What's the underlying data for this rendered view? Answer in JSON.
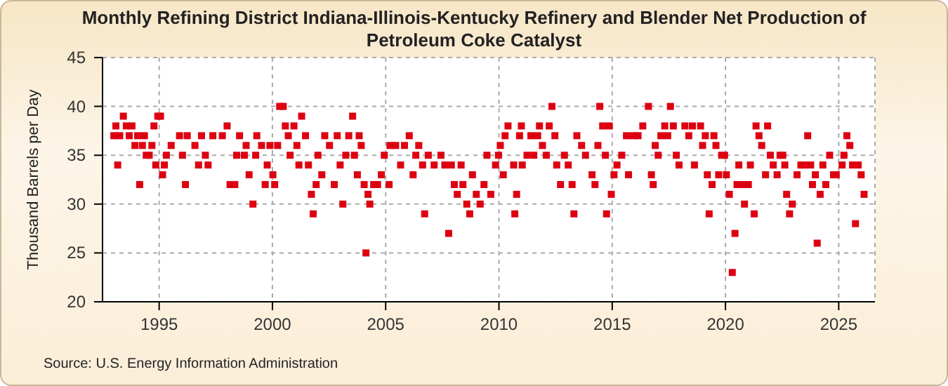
{
  "chart_data": {
    "type": "scatter",
    "title": "Monthly Refining District Indiana-Illinois-Kentucky Refinery and Blender Net Production of Petroleum Coke Catalyst",
    "ylabel": "Thousand Barrels per Day",
    "annotations": [
      "Source: U.S. Energy Information Administration"
    ],
    "marker": "square",
    "grid": true,
    "xlim": [
      1992.5,
      2026.6
    ],
    "xticks": [
      1995,
      2000,
      2005,
      2010,
      2015,
      2020,
      2025
    ],
    "ylim": [
      20,
      45
    ],
    "yticks": [
      20,
      25,
      30,
      35,
      40,
      45
    ],
    "x": [
      1993.0,
      1993.09,
      1993.17,
      1993.26,
      1993.42,
      1993.55,
      1993.68,
      1993.8,
      1993.93,
      1994.05,
      1994.14,
      1994.26,
      1994.35,
      1994.43,
      1994.56,
      1994.68,
      1994.77,
      1994.85,
      1994.94,
      1995.06,
      1995.15,
      1995.23,
      1995.32,
      1995.53,
      1995.9,
      1996.03,
      1996.16,
      1996.24,
      1996.58,
      1996.74,
      1996.87,
      1997.04,
      1997.16,
      1997.37,
      1997.79,
      1998.0,
      1998.13,
      1998.34,
      1998.42,
      1998.55,
      1998.76,
      1998.84,
      1998.97,
      1999.14,
      1999.26,
      1999.31,
      1999.52,
      1999.68,
      1999.77,
      1999.89,
      2000.02,
      2000.1,
      2000.23,
      2000.32,
      2000.48,
      2000.57,
      2000.7,
      2000.78,
      2000.95,
      2001.08,
      2001.17,
      2001.29,
      2001.46,
      2001.59,
      2001.72,
      2001.8,
      2001.93,
      2002.01,
      2002.18,
      2002.31,
      2002.52,
      2002.73,
      2002.86,
      2002.99,
      2003.11,
      2003.24,
      2003.37,
      2003.54,
      2003.62,
      2003.75,
      2003.83,
      2003.92,
      2004.05,
      2004.13,
      2004.22,
      2004.3,
      2004.47,
      2004.64,
      2004.81,
      2004.94,
      2005.15,
      2005.19,
      2005.44,
      2005.66,
      2005.83,
      2006.04,
      2006.21,
      2006.33,
      2006.46,
      2006.63,
      2006.72,
      2006.88,
      2007.14,
      2007.44,
      2007.61,
      2007.78,
      2007.9,
      2008.03,
      2008.16,
      2008.33,
      2008.41,
      2008.58,
      2008.71,
      2008.83,
      2009.0,
      2009.17,
      2009.34,
      2009.47,
      2009.64,
      2009.85,
      2009.98,
      2010.06,
      2010.19,
      2010.27,
      2010.4,
      2010.65,
      2010.7,
      2010.78,
      2010.91,
      2010.99,
      2011.03,
      2011.24,
      2011.41,
      2011.54,
      2011.71,
      2011.79,
      2011.92,
      2012.09,
      2012.22,
      2012.34,
      2012.47,
      2012.55,
      2012.72,
      2012.89,
      2013.06,
      2013.23,
      2013.31,
      2013.44,
      2013.65,
      2013.82,
      2014.11,
      2014.24,
      2014.37,
      2014.45,
      2014.58,
      2014.7,
      2014.75,
      2014.87,
      2014.96,
      2015.08,
      2015.21,
      2015.42,
      2015.63,
      2015.72,
      2015.93,
      2016.14,
      2016.35,
      2016.6,
      2016.73,
      2016.81,
      2016.9,
      2017.03,
      2017.15,
      2017.32,
      2017.45,
      2017.57,
      2017.7,
      2017.83,
      2017.95,
      2018.21,
      2018.38,
      2018.54,
      2018.63,
      2018.9,
      2018.99,
      2019.11,
      2019.2,
      2019.28,
      2019.41,
      2019.49,
      2019.58,
      2019.7,
      2019.83,
      2019.96,
      2020.04,
      2020.17,
      2020.3,
      2020.42,
      2020.51,
      2020.59,
      2020.72,
      2020.84,
      2021.01,
      2021.1,
      2021.27,
      2021.35,
      2021.48,
      2021.6,
      2021.77,
      2021.86,
      2021.98,
      2022.11,
      2022.28,
      2022.41,
      2022.53,
      2022.62,
      2022.7,
      2022.83,
      2022.95,
      2023.16,
      2023.33,
      2023.5,
      2023.63,
      2023.76,
      2023.84,
      2023.97,
      2024.05,
      2024.18,
      2024.3,
      2024.43,
      2024.6,
      2024.77,
      2024.89,
      2025.15,
      2025.23,
      2025.36,
      2025.49,
      2025.61,
      2025.74,
      2025.86,
      2025.99,
      2026.12
    ],
    "series": [
      {
        "color": "#dd0011",
        "values": [
          37,
          38,
          34,
          37,
          39,
          38,
          37,
          38,
          36,
          37,
          32,
          36,
          37,
          35,
          35,
          36,
          38,
          34,
          39,
          39,
          33,
          34,
          35,
          36,
          37,
          35,
          32,
          37,
          36,
          34,
          37,
          35,
          34,
          37,
          37,
          38,
          32,
          32,
          35,
          37,
          35,
          36,
          33,
          30,
          35,
          37,
          36,
          32,
          34,
          36,
          33,
          32,
          36,
          40,
          40,
          38,
          37,
          35,
          38,
          36,
          34,
          39,
          37,
          34,
          31,
          29,
          32,
          35,
          33,
          37,
          36,
          32,
          37,
          34,
          30,
          35,
          37,
          39,
          35,
          33,
          37,
          36,
          32,
          25,
          31,
          30,
          32,
          32,
          33,
          35,
          32,
          36,
          36,
          34,
          36,
          37,
          33,
          35,
          36,
          34,
          29,
          35,
          34,
          35,
          34,
          27,
          34,
          32,
          31,
          34,
          32,
          30,
          29,
          33,
          31,
          30,
          32,
          35,
          31,
          34,
          35,
          36,
          33,
          37,
          38,
          34,
          29,
          31,
          37,
          38,
          34,
          35,
          37,
          35,
          37,
          38,
          36,
          35,
          38,
          40,
          37,
          34,
          32,
          35,
          34,
          32,
          29,
          37,
          36,
          35,
          33,
          32,
          36,
          40,
          38,
          35,
          29,
          38,
          31,
          33,
          34,
          35,
          37,
          33,
          37,
          37,
          38,
          40,
          33,
          32,
          36,
          35,
          37,
          38,
          37,
          40,
          38,
          35,
          34,
          38,
          37,
          38,
          34,
          38,
          36,
          37,
          33,
          29,
          32,
          37,
          36,
          33,
          35,
          35,
          33,
          31,
          23,
          27,
          32,
          34,
          32,
          30,
          32,
          34,
          29,
          38,
          37,
          36,
          33,
          38,
          35,
          34,
          33,
          35,
          35,
          34,
          31,
          29,
          30,
          33,
          34,
          34,
          37,
          34,
          32,
          33,
          26,
          31,
          34,
          32,
          35,
          33,
          33,
          34,
          35,
          37,
          36,
          34,
          28,
          34,
          33,
          31
        ]
      }
    ]
  }
}
